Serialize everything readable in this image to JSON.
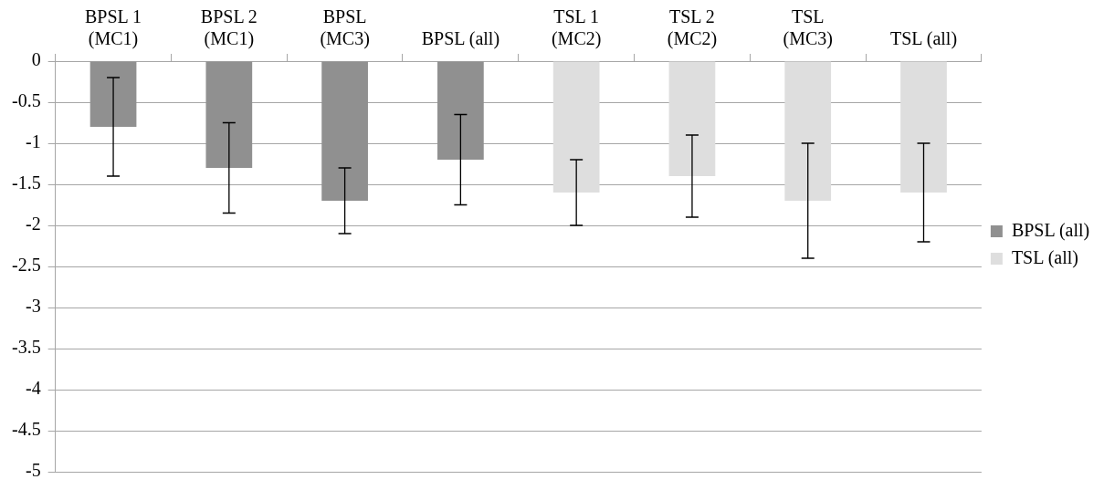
{
  "chart_data": {
    "type": "bar",
    "categories": [
      "BPSL 1 (MC1)",
      "BPSL 2 (MC1)",
      "BPSL (MC3)",
      "BPSL (all)",
      "TSL 1 (MC2)",
      "TSL 2 (MC2)",
      "TSL (MC3)",
      "TSL (all)"
    ],
    "series": [
      {
        "name": "BPSL (all)",
        "color": "#909090",
        "values": [
          -0.8,
          -1.3,
          -1.7,
          -1.2,
          null,
          null,
          null,
          null
        ],
        "errors": [
          0.6,
          0.55,
          0.4,
          0.55,
          null,
          null,
          null,
          null
        ]
      },
      {
        "name": "TSL (all)",
        "color": "#dedede",
        "values": [
          null,
          null,
          null,
          null,
          -1.6,
          -1.4,
          -1.7,
          -1.6
        ],
        "errors": [
          null,
          null,
          null,
          null,
          0.4,
          0.5,
          0.7,
          0.6
        ]
      }
    ],
    "ylim": [
      -5,
      0
    ],
    "yticks": [
      -5,
      -4.5,
      -4,
      -3.5,
      -3,
      -2.5,
      -2,
      -1.5,
      -1,
      -0.5,
      0
    ],
    "grid": "y",
    "legend": "right"
  }
}
